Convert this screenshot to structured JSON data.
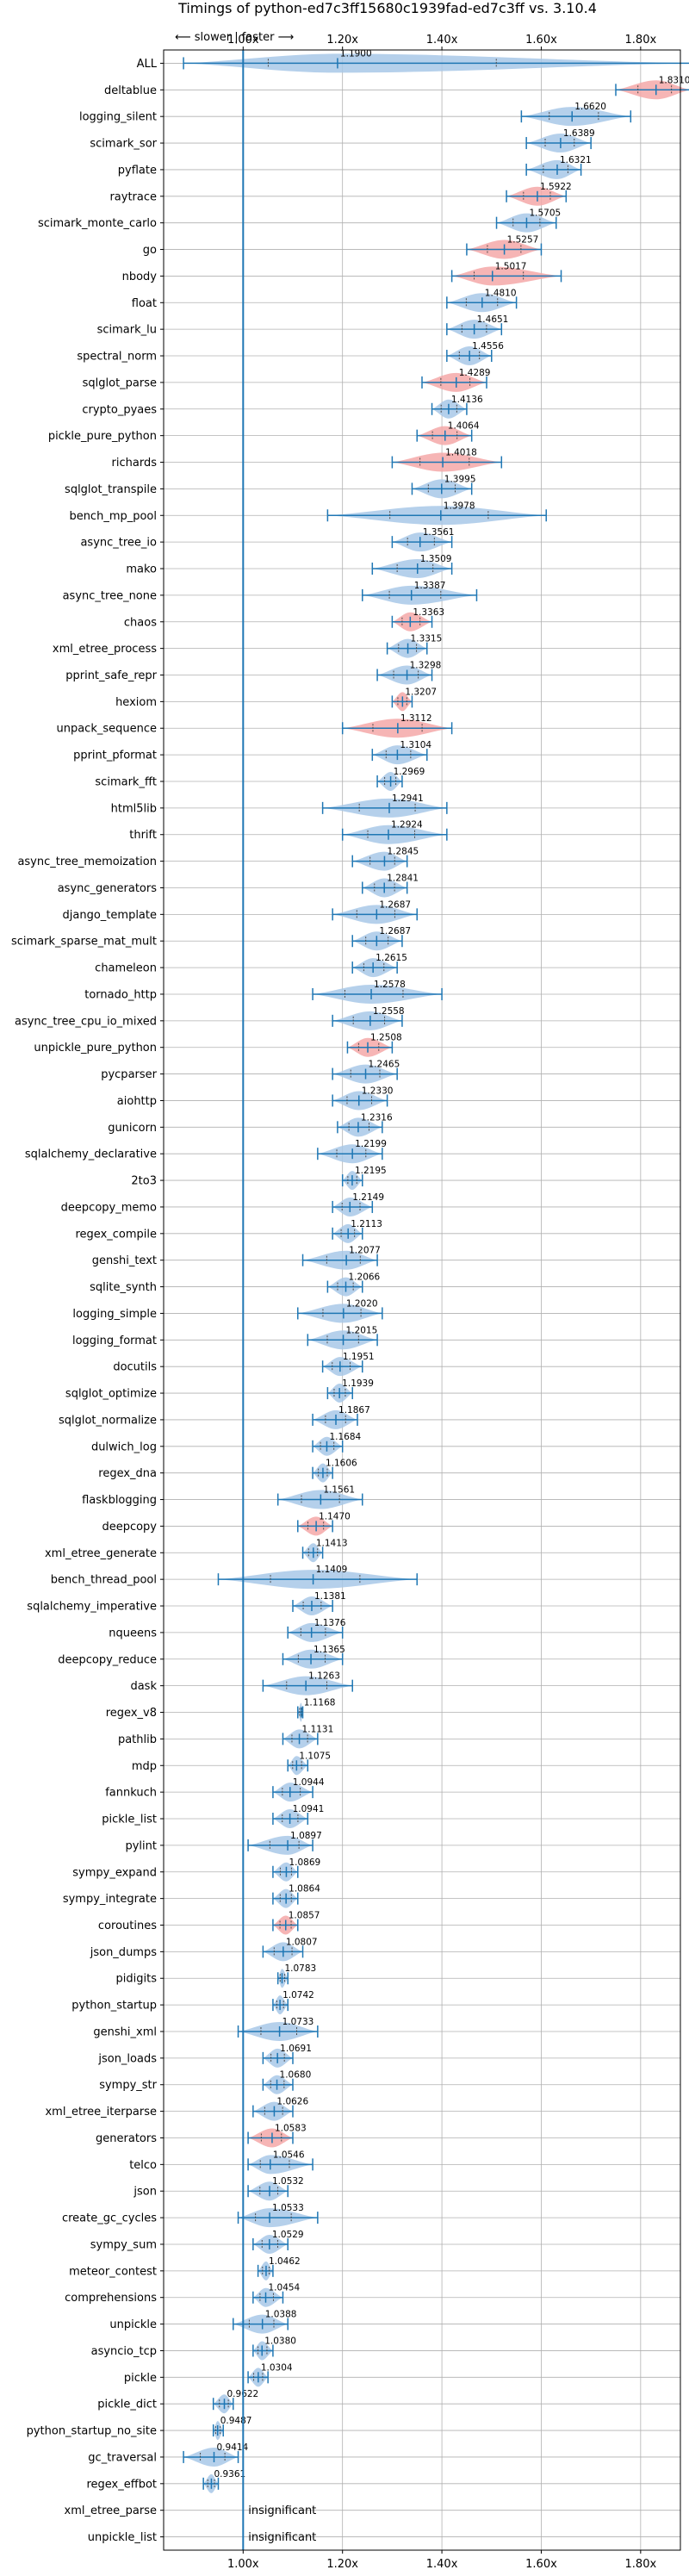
{
  "chart_data": {
    "type": "violin",
    "title": "Timings of python-ed7c3ff15680c1939fad-ed7c3ff vs. 3.10.4",
    "xlabel": "",
    "ylabel": "",
    "direction_label": "⟵ slower | faster ⟶",
    "xlim": [
      0.84,
      1.88
    ],
    "xticks": [
      1.0,
      1.2,
      1.4,
      1.6,
      1.8
    ],
    "xtick_labels": [
      "1.00x",
      "1.20x",
      "1.40x",
      "1.60x",
      "1.80x"
    ],
    "grid": true,
    "insignificant_label": "insignificant",
    "colors": {
      "faster": "#a8c8e8",
      "slower": "#f4a8a8",
      "whisker": "#1f77b4",
      "baseline": "#1f77b4"
    },
    "benchmarks": [
      {
        "name": "ALL",
        "value": 1.19,
        "label": "1.1900",
        "lo": 0.88,
        "hi": 1.9,
        "status": "faster"
      },
      {
        "name": "deltablue",
        "value": 1.831,
        "label": "1.8310",
        "lo": 1.75,
        "hi": 1.9,
        "status": "slower"
      },
      {
        "name": "logging_silent",
        "value": 1.662,
        "label": "1.6620",
        "lo": 1.56,
        "hi": 1.78,
        "status": "faster"
      },
      {
        "name": "scimark_sor",
        "value": 1.6389,
        "label": "1.6389",
        "lo": 1.57,
        "hi": 1.7,
        "status": "faster"
      },
      {
        "name": "pyflate",
        "value": 1.6321,
        "label": "1.6321",
        "lo": 1.57,
        "hi": 1.68,
        "status": "faster"
      },
      {
        "name": "raytrace",
        "value": 1.5922,
        "label": "1.5922",
        "lo": 1.53,
        "hi": 1.65,
        "status": "slower"
      },
      {
        "name": "scimark_monte_carlo",
        "value": 1.5705,
        "label": "1.5705",
        "lo": 1.51,
        "hi": 1.63,
        "status": "faster"
      },
      {
        "name": "go",
        "value": 1.5257,
        "label": "1.5257",
        "lo": 1.45,
        "hi": 1.6,
        "status": "slower"
      },
      {
        "name": "nbody",
        "value": 1.5017,
        "label": "1.5017",
        "lo": 1.42,
        "hi": 1.64,
        "status": "slower"
      },
      {
        "name": "float",
        "value": 1.481,
        "label": "1.4810",
        "lo": 1.41,
        "hi": 1.55,
        "status": "faster"
      },
      {
        "name": "scimark_lu",
        "value": 1.4651,
        "label": "1.4651",
        "lo": 1.41,
        "hi": 1.52,
        "status": "faster"
      },
      {
        "name": "spectral_norm",
        "value": 1.4556,
        "label": "1.4556",
        "lo": 1.41,
        "hi": 1.5,
        "status": "faster"
      },
      {
        "name": "sqlglot_parse",
        "value": 1.4289,
        "label": "1.4289",
        "lo": 1.36,
        "hi": 1.49,
        "status": "slower"
      },
      {
        "name": "crypto_pyaes",
        "value": 1.4136,
        "label": "1.4136",
        "lo": 1.38,
        "hi": 1.45,
        "status": "faster"
      },
      {
        "name": "pickle_pure_python",
        "value": 1.4064,
        "label": "1.4064",
        "lo": 1.35,
        "hi": 1.46,
        "status": "slower"
      },
      {
        "name": "richards",
        "value": 1.4018,
        "label": "1.4018",
        "lo": 1.3,
        "hi": 1.52,
        "status": "slower"
      },
      {
        "name": "sqlglot_transpile",
        "value": 1.3995,
        "label": "1.3995",
        "lo": 1.34,
        "hi": 1.46,
        "status": "faster"
      },
      {
        "name": "bench_mp_pool",
        "value": 1.3978,
        "label": "1.3978",
        "lo": 1.17,
        "hi": 1.61,
        "status": "faster"
      },
      {
        "name": "async_tree_io",
        "value": 1.3561,
        "label": "1.3561",
        "lo": 1.3,
        "hi": 1.42,
        "status": "faster"
      },
      {
        "name": "mako",
        "value": 1.3509,
        "label": "1.3509",
        "lo": 1.26,
        "hi": 1.42,
        "status": "faster"
      },
      {
        "name": "async_tree_none",
        "value": 1.3387,
        "label": "1.3387",
        "lo": 1.24,
        "hi": 1.47,
        "status": "faster"
      },
      {
        "name": "chaos",
        "value": 1.3363,
        "label": "1.3363",
        "lo": 1.3,
        "hi": 1.38,
        "status": "slower"
      },
      {
        "name": "xml_etree_process",
        "value": 1.3315,
        "label": "1.3315",
        "lo": 1.29,
        "hi": 1.37,
        "status": "faster"
      },
      {
        "name": "pprint_safe_repr",
        "value": 1.3298,
        "label": "1.3298",
        "lo": 1.27,
        "hi": 1.38,
        "status": "faster"
      },
      {
        "name": "hexiom",
        "value": 1.3207,
        "label": "1.3207",
        "lo": 1.3,
        "hi": 1.34,
        "status": "slower"
      },
      {
        "name": "unpack_sequence",
        "value": 1.3112,
        "label": "1.3112",
        "lo": 1.2,
        "hi": 1.42,
        "status": "slower"
      },
      {
        "name": "pprint_pformat",
        "value": 1.3104,
        "label": "1.3104",
        "lo": 1.26,
        "hi": 1.37,
        "status": "faster"
      },
      {
        "name": "scimark_fft",
        "value": 1.2969,
        "label": "1.2969",
        "lo": 1.27,
        "hi": 1.32,
        "status": "faster"
      },
      {
        "name": "html5lib",
        "value": 1.2941,
        "label": "1.2941",
        "lo": 1.16,
        "hi": 1.41,
        "status": "faster"
      },
      {
        "name": "thrift",
        "value": 1.2924,
        "label": "1.2924",
        "lo": 1.2,
        "hi": 1.41,
        "status": "faster"
      },
      {
        "name": "async_tree_memoization",
        "value": 1.2845,
        "label": "1.2845",
        "lo": 1.22,
        "hi": 1.33,
        "status": "faster"
      },
      {
        "name": "async_generators",
        "value": 1.2841,
        "label": "1.2841",
        "lo": 1.24,
        "hi": 1.33,
        "status": "faster"
      },
      {
        "name": "django_template",
        "value": 1.2687,
        "label": "1.2687",
        "lo": 1.18,
        "hi": 1.35,
        "status": "faster"
      },
      {
        "name": "scimark_sparse_mat_mult",
        "value": 1.2687,
        "label": "1.2687",
        "lo": 1.22,
        "hi": 1.32,
        "status": "faster"
      },
      {
        "name": "chameleon",
        "value": 1.2615,
        "label": "1.2615",
        "lo": 1.22,
        "hi": 1.31,
        "status": "faster"
      },
      {
        "name": "tornado_http",
        "value": 1.2578,
        "label": "1.2578",
        "lo": 1.14,
        "hi": 1.4,
        "status": "faster"
      },
      {
        "name": "async_tree_cpu_io_mixed",
        "value": 1.2558,
        "label": "1.2558",
        "lo": 1.18,
        "hi": 1.32,
        "status": "faster"
      },
      {
        "name": "unpickle_pure_python",
        "value": 1.2508,
        "label": "1.2508",
        "lo": 1.21,
        "hi": 1.3,
        "status": "slower"
      },
      {
        "name": "pycparser",
        "value": 1.2465,
        "label": "1.2465",
        "lo": 1.18,
        "hi": 1.31,
        "status": "faster"
      },
      {
        "name": "aiohttp",
        "value": 1.233,
        "label": "1.2330",
        "lo": 1.18,
        "hi": 1.29,
        "status": "faster"
      },
      {
        "name": "gunicorn",
        "value": 1.2316,
        "label": "1.2316",
        "lo": 1.19,
        "hi": 1.28,
        "status": "faster"
      },
      {
        "name": "sqlalchemy_declarative",
        "value": 1.2199,
        "label": "1.2199",
        "lo": 1.15,
        "hi": 1.28,
        "status": "faster"
      },
      {
        "name": "2to3",
        "value": 1.2195,
        "label": "1.2195",
        "lo": 1.2,
        "hi": 1.24,
        "status": "faster"
      },
      {
        "name": "deepcopy_memo",
        "value": 1.2149,
        "label": "1.2149",
        "lo": 1.18,
        "hi": 1.26,
        "status": "faster"
      },
      {
        "name": "regex_compile",
        "value": 1.2113,
        "label": "1.2113",
        "lo": 1.18,
        "hi": 1.24,
        "status": "faster"
      },
      {
        "name": "genshi_text",
        "value": 1.2077,
        "label": "1.2077",
        "lo": 1.12,
        "hi": 1.27,
        "status": "faster"
      },
      {
        "name": "sqlite_synth",
        "value": 1.2066,
        "label": "1.2066",
        "lo": 1.17,
        "hi": 1.24,
        "status": "faster"
      },
      {
        "name": "logging_simple",
        "value": 1.202,
        "label": "1.2020",
        "lo": 1.11,
        "hi": 1.28,
        "status": "faster"
      },
      {
        "name": "logging_format",
        "value": 1.2015,
        "label": "1.2015",
        "lo": 1.13,
        "hi": 1.27,
        "status": "faster"
      },
      {
        "name": "docutils",
        "value": 1.1951,
        "label": "1.1951",
        "lo": 1.16,
        "hi": 1.24,
        "status": "faster"
      },
      {
        "name": "sqlglot_optimize",
        "value": 1.1939,
        "label": "1.1939",
        "lo": 1.17,
        "hi": 1.22,
        "status": "faster"
      },
      {
        "name": "sqlglot_normalize",
        "value": 1.1867,
        "label": "1.1867",
        "lo": 1.14,
        "hi": 1.23,
        "status": "faster"
      },
      {
        "name": "dulwich_log",
        "value": 1.1684,
        "label": "1.1684",
        "lo": 1.14,
        "hi": 1.2,
        "status": "faster"
      },
      {
        "name": "regex_dna",
        "value": 1.1606,
        "label": "1.1606",
        "lo": 1.14,
        "hi": 1.18,
        "status": "faster"
      },
      {
        "name": "flaskblogging",
        "value": 1.1561,
        "label": "1.1561",
        "lo": 1.07,
        "hi": 1.24,
        "status": "faster"
      },
      {
        "name": "deepcopy",
        "value": 1.147,
        "label": "1.1470",
        "lo": 1.11,
        "hi": 1.18,
        "status": "slower"
      },
      {
        "name": "xml_etree_generate",
        "value": 1.1413,
        "label": "1.1413",
        "lo": 1.12,
        "hi": 1.16,
        "status": "faster"
      },
      {
        "name": "bench_thread_pool",
        "value": 1.1409,
        "label": "1.1409",
        "lo": 0.95,
        "hi": 1.35,
        "status": "faster"
      },
      {
        "name": "sqlalchemy_imperative",
        "value": 1.1381,
        "label": "1.1381",
        "lo": 1.1,
        "hi": 1.18,
        "status": "faster"
      },
      {
        "name": "nqueens",
        "value": 1.1376,
        "label": "1.1376",
        "lo": 1.09,
        "hi": 1.2,
        "status": "faster"
      },
      {
        "name": "deepcopy_reduce",
        "value": 1.1365,
        "label": "1.1365",
        "lo": 1.08,
        "hi": 1.2,
        "status": "faster"
      },
      {
        "name": "dask",
        "value": 1.1263,
        "label": "1.1263",
        "lo": 1.04,
        "hi": 1.22,
        "status": "faster"
      },
      {
        "name": "regex_v8",
        "value": 1.1168,
        "label": "1.1168",
        "lo": 1.11,
        "hi": 1.12,
        "status": "faster"
      },
      {
        "name": "pathlib",
        "value": 1.1131,
        "label": "1.1131",
        "lo": 1.08,
        "hi": 1.15,
        "status": "faster"
      },
      {
        "name": "mdp",
        "value": 1.1075,
        "label": "1.1075",
        "lo": 1.09,
        "hi": 1.13,
        "status": "faster"
      },
      {
        "name": "fannkuch",
        "value": 1.0944,
        "label": "1.0944",
        "lo": 1.06,
        "hi": 1.14,
        "status": "faster"
      },
      {
        "name": "pickle_list",
        "value": 1.0941,
        "label": "1.0941",
        "lo": 1.06,
        "hi": 1.13,
        "status": "faster"
      },
      {
        "name": "pylint",
        "value": 1.0897,
        "label": "1.0897",
        "lo": 1.01,
        "hi": 1.14,
        "status": "faster"
      },
      {
        "name": "sympy_expand",
        "value": 1.0869,
        "label": "1.0869",
        "lo": 1.06,
        "hi": 1.11,
        "status": "faster"
      },
      {
        "name": "sympy_integrate",
        "value": 1.0864,
        "label": "1.0864",
        "lo": 1.06,
        "hi": 1.11,
        "status": "faster"
      },
      {
        "name": "coroutines",
        "value": 1.0857,
        "label": "1.0857",
        "lo": 1.06,
        "hi": 1.11,
        "status": "slower"
      },
      {
        "name": "json_dumps",
        "value": 1.0807,
        "label": "1.0807",
        "lo": 1.04,
        "hi": 1.12,
        "status": "faster"
      },
      {
        "name": "pidigits",
        "value": 1.0783,
        "label": "1.0783",
        "lo": 1.07,
        "hi": 1.09,
        "status": "faster"
      },
      {
        "name": "python_startup",
        "value": 1.0742,
        "label": "1.0742",
        "lo": 1.06,
        "hi": 1.09,
        "status": "faster"
      },
      {
        "name": "genshi_xml",
        "value": 1.0733,
        "label": "1.0733",
        "lo": 0.99,
        "hi": 1.15,
        "status": "faster"
      },
      {
        "name": "json_loads",
        "value": 1.0691,
        "label": "1.0691",
        "lo": 1.04,
        "hi": 1.1,
        "status": "faster"
      },
      {
        "name": "sympy_str",
        "value": 1.068,
        "label": "1.0680",
        "lo": 1.04,
        "hi": 1.1,
        "status": "faster"
      },
      {
        "name": "xml_etree_iterparse",
        "value": 1.0626,
        "label": "1.0626",
        "lo": 1.02,
        "hi": 1.1,
        "status": "faster"
      },
      {
        "name": "generators",
        "value": 1.0583,
        "label": "1.0583",
        "lo": 1.01,
        "hi": 1.1,
        "status": "slower"
      },
      {
        "name": "telco",
        "value": 1.0546,
        "label": "1.0546",
        "lo": 1.01,
        "hi": 1.14,
        "status": "faster"
      },
      {
        "name": "json",
        "value": 1.0532,
        "label": "1.0532",
        "lo": 1.01,
        "hi": 1.09,
        "status": "faster"
      },
      {
        "name": "create_gc_cycles",
        "value": 1.0533,
        "label": "1.0533",
        "lo": 0.99,
        "hi": 1.15,
        "status": "faster"
      },
      {
        "name": "sympy_sum",
        "value": 1.0529,
        "label": "1.0529",
        "lo": 1.02,
        "hi": 1.09,
        "status": "faster"
      },
      {
        "name": "meteor_contest",
        "value": 1.0462,
        "label": "1.0462",
        "lo": 1.03,
        "hi": 1.06,
        "status": "faster"
      },
      {
        "name": "comprehensions",
        "value": 1.0454,
        "label": "1.0454",
        "lo": 1.02,
        "hi": 1.08,
        "status": "faster"
      },
      {
        "name": "unpickle",
        "value": 1.0388,
        "label": "1.0388",
        "lo": 0.98,
        "hi": 1.09,
        "status": "faster"
      },
      {
        "name": "asyncio_tcp",
        "value": 1.038,
        "label": "1.0380",
        "lo": 1.02,
        "hi": 1.06,
        "status": "faster"
      },
      {
        "name": "pickle",
        "value": 1.0304,
        "label": "1.0304",
        "lo": 1.01,
        "hi": 1.05,
        "status": "faster"
      },
      {
        "name": "pickle_dict",
        "value": 0.9622,
        "label": "0.9622",
        "lo": 0.94,
        "hi": 0.98,
        "status": "faster"
      },
      {
        "name": "python_startup_no_site",
        "value": 0.9487,
        "label": "0.9487",
        "lo": 0.94,
        "hi": 0.96,
        "status": "faster"
      },
      {
        "name": "gc_traversal",
        "value": 0.9414,
        "label": "0.9414",
        "lo": 0.88,
        "hi": 0.99,
        "status": "faster"
      },
      {
        "name": "regex_effbot",
        "value": 0.9361,
        "label": "0.9361",
        "lo": 0.92,
        "hi": 0.95,
        "status": "faster"
      },
      {
        "name": "xml_etree_parse",
        "value": null,
        "label": "",
        "lo": null,
        "hi": null,
        "status": "insignificant"
      },
      {
        "name": "unpickle_list",
        "value": null,
        "label": "",
        "lo": null,
        "hi": null,
        "status": "insignificant"
      }
    ]
  }
}
